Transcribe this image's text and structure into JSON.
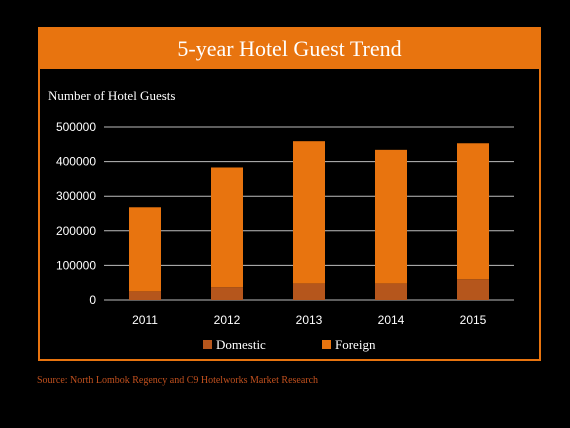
{
  "chart_data": {
    "type": "bar",
    "stacked": true,
    "title": "5-year Hotel Guest Trend",
    "ylabel": "Number of Hotel Guests",
    "xlabel": "",
    "categories": [
      "2011",
      "2012",
      "2013",
      "2014",
      "2015"
    ],
    "series": [
      {
        "name": "Domestic",
        "values": [
          25000,
          37000,
          48000,
          48000,
          60000
        ],
        "color": "#b5561c"
      },
      {
        "name": "Foreign",
        "values": [
          243000,
          346000,
          411000,
          386000,
          393000
        ],
        "color": "#e8740f"
      }
    ],
    "ylim": [
      0,
      500000
    ],
    "yticks": [
      0,
      100000,
      200000,
      300000,
      400000,
      500000
    ],
    "ytick_labels": [
      "0",
      "100000",
      "200000",
      "300000",
      "400000",
      "500000"
    ],
    "grid": true,
    "legend": "bottom"
  },
  "source": "Source: North Lombok Regency and C9 Hotelworks Market Research",
  "colors": {
    "accent": "#e8740f",
    "background": "#000000",
    "source_text": "#c0501e"
  }
}
